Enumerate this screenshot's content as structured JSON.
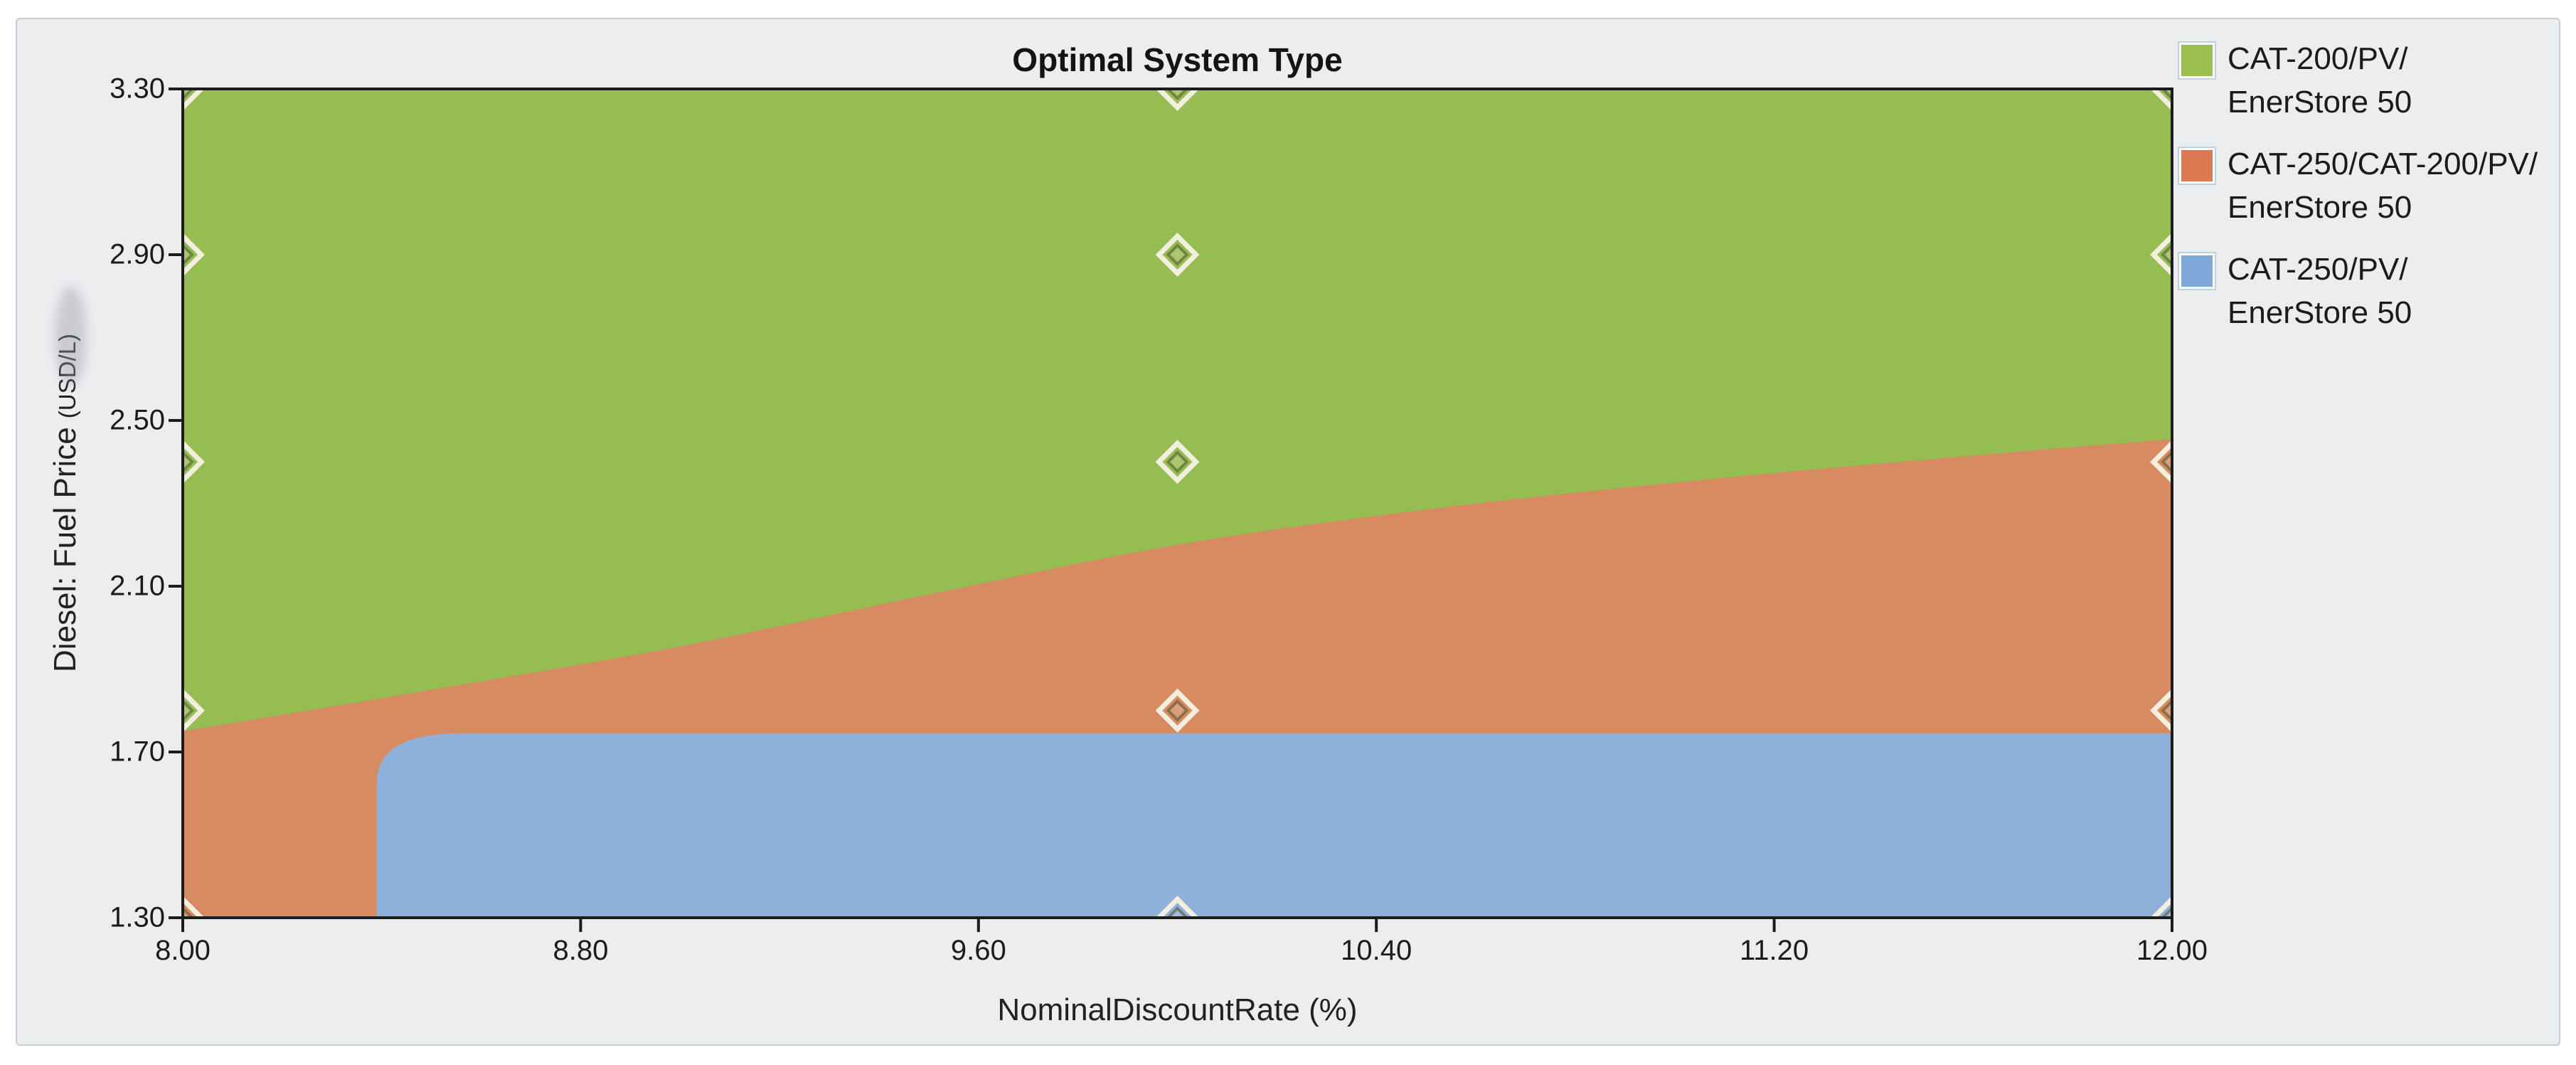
{
  "title": "Optimal System Type",
  "axes": {
    "x": {
      "label": "NominalDiscountRate (%)",
      "tick_labels": [
        "8.00",
        "8.80",
        "9.60",
        "10.40",
        "11.20",
        "12.00"
      ],
      "range": [
        8.0,
        12.0
      ]
    },
    "y": {
      "label": "Diesel: Fuel Price",
      "unit": "(USD/L)",
      "tick_labels": [
        "3.30",
        "2.90",
        "2.50",
        "2.10",
        "1.70",
        "1.30"
      ],
      "range": [
        1.3,
        3.3
      ]
    }
  },
  "legend": {
    "items": [
      {
        "lines": [
          "CAT-200/PV/",
          "EnerStore 50"
        ],
        "color": "#9ABE4F"
      },
      {
        "lines": [
          "CAT-250/CAT-200/PV/",
          "EnerStore 50"
        ],
        "color": "#DC7950"
      },
      {
        "lines": [
          "CAT-250/PV/",
          "EnerStore 50"
        ],
        "color": "#7EA7D8"
      }
    ]
  },
  "colors": {
    "region_green": "#96BD52",
    "region_orange": "#D88A61",
    "region_blue": "#8EB1DC",
    "panel_background": "#ECEDEF",
    "plot_border": "#1c1c1c",
    "marker_outline": "#F2EFDE",
    "marker_inner": "rgba(85,90,50,0.6)",
    "text": "#1b1b1b"
  },
  "chart_data": {
    "type": "area",
    "subtype": "optimization-surface",
    "title": "Optimal System Type",
    "xlabel": "NominalDiscountRate (%)",
    "ylabel": "Diesel: Fuel Price (USD/L)",
    "xlim": [
      8.0,
      12.0
    ],
    "ylim": [
      1.3,
      3.3
    ],
    "grid": false,
    "legend_position": "outside-top-right",
    "regions": [
      {
        "name": "CAT-200/PV/ EnerStore 50",
        "color": "#96BD52",
        "extent": "above green-orange boundary"
      },
      {
        "name": "CAT-250/CAT-200/PV/ EnerStore 50",
        "color": "#D88A61",
        "extent": "between green-orange boundary and blue region"
      },
      {
        "name": "CAT-250/PV/ EnerStore 50",
        "color": "#8EB1DC",
        "extent": "x >= ~8.39, y <= ~1.745"
      }
    ],
    "boundary_green_orange": [
      [
        8.0,
        1.75
      ],
      [
        8.5,
        1.85
      ],
      [
        9.0,
        1.955
      ],
      [
        9.5,
        2.08
      ],
      [
        10.0,
        2.2
      ],
      [
        10.5,
        2.285
      ],
      [
        11.0,
        2.35
      ],
      [
        11.5,
        2.405
      ],
      [
        12.0,
        2.455
      ]
    ],
    "blue_region": {
      "x_min": 8.39,
      "x_max": 12.0,
      "y_min": 1.3,
      "y_max": 1.745,
      "corner_radius_x": 0.17,
      "corner_radius_y": 0.12
    },
    "sensitivity_markers": {
      "x_values": [
        8.0,
        10.0,
        12.0
      ],
      "y_values": [
        1.3,
        1.8,
        2.4,
        2.9,
        3.3
      ]
    }
  }
}
